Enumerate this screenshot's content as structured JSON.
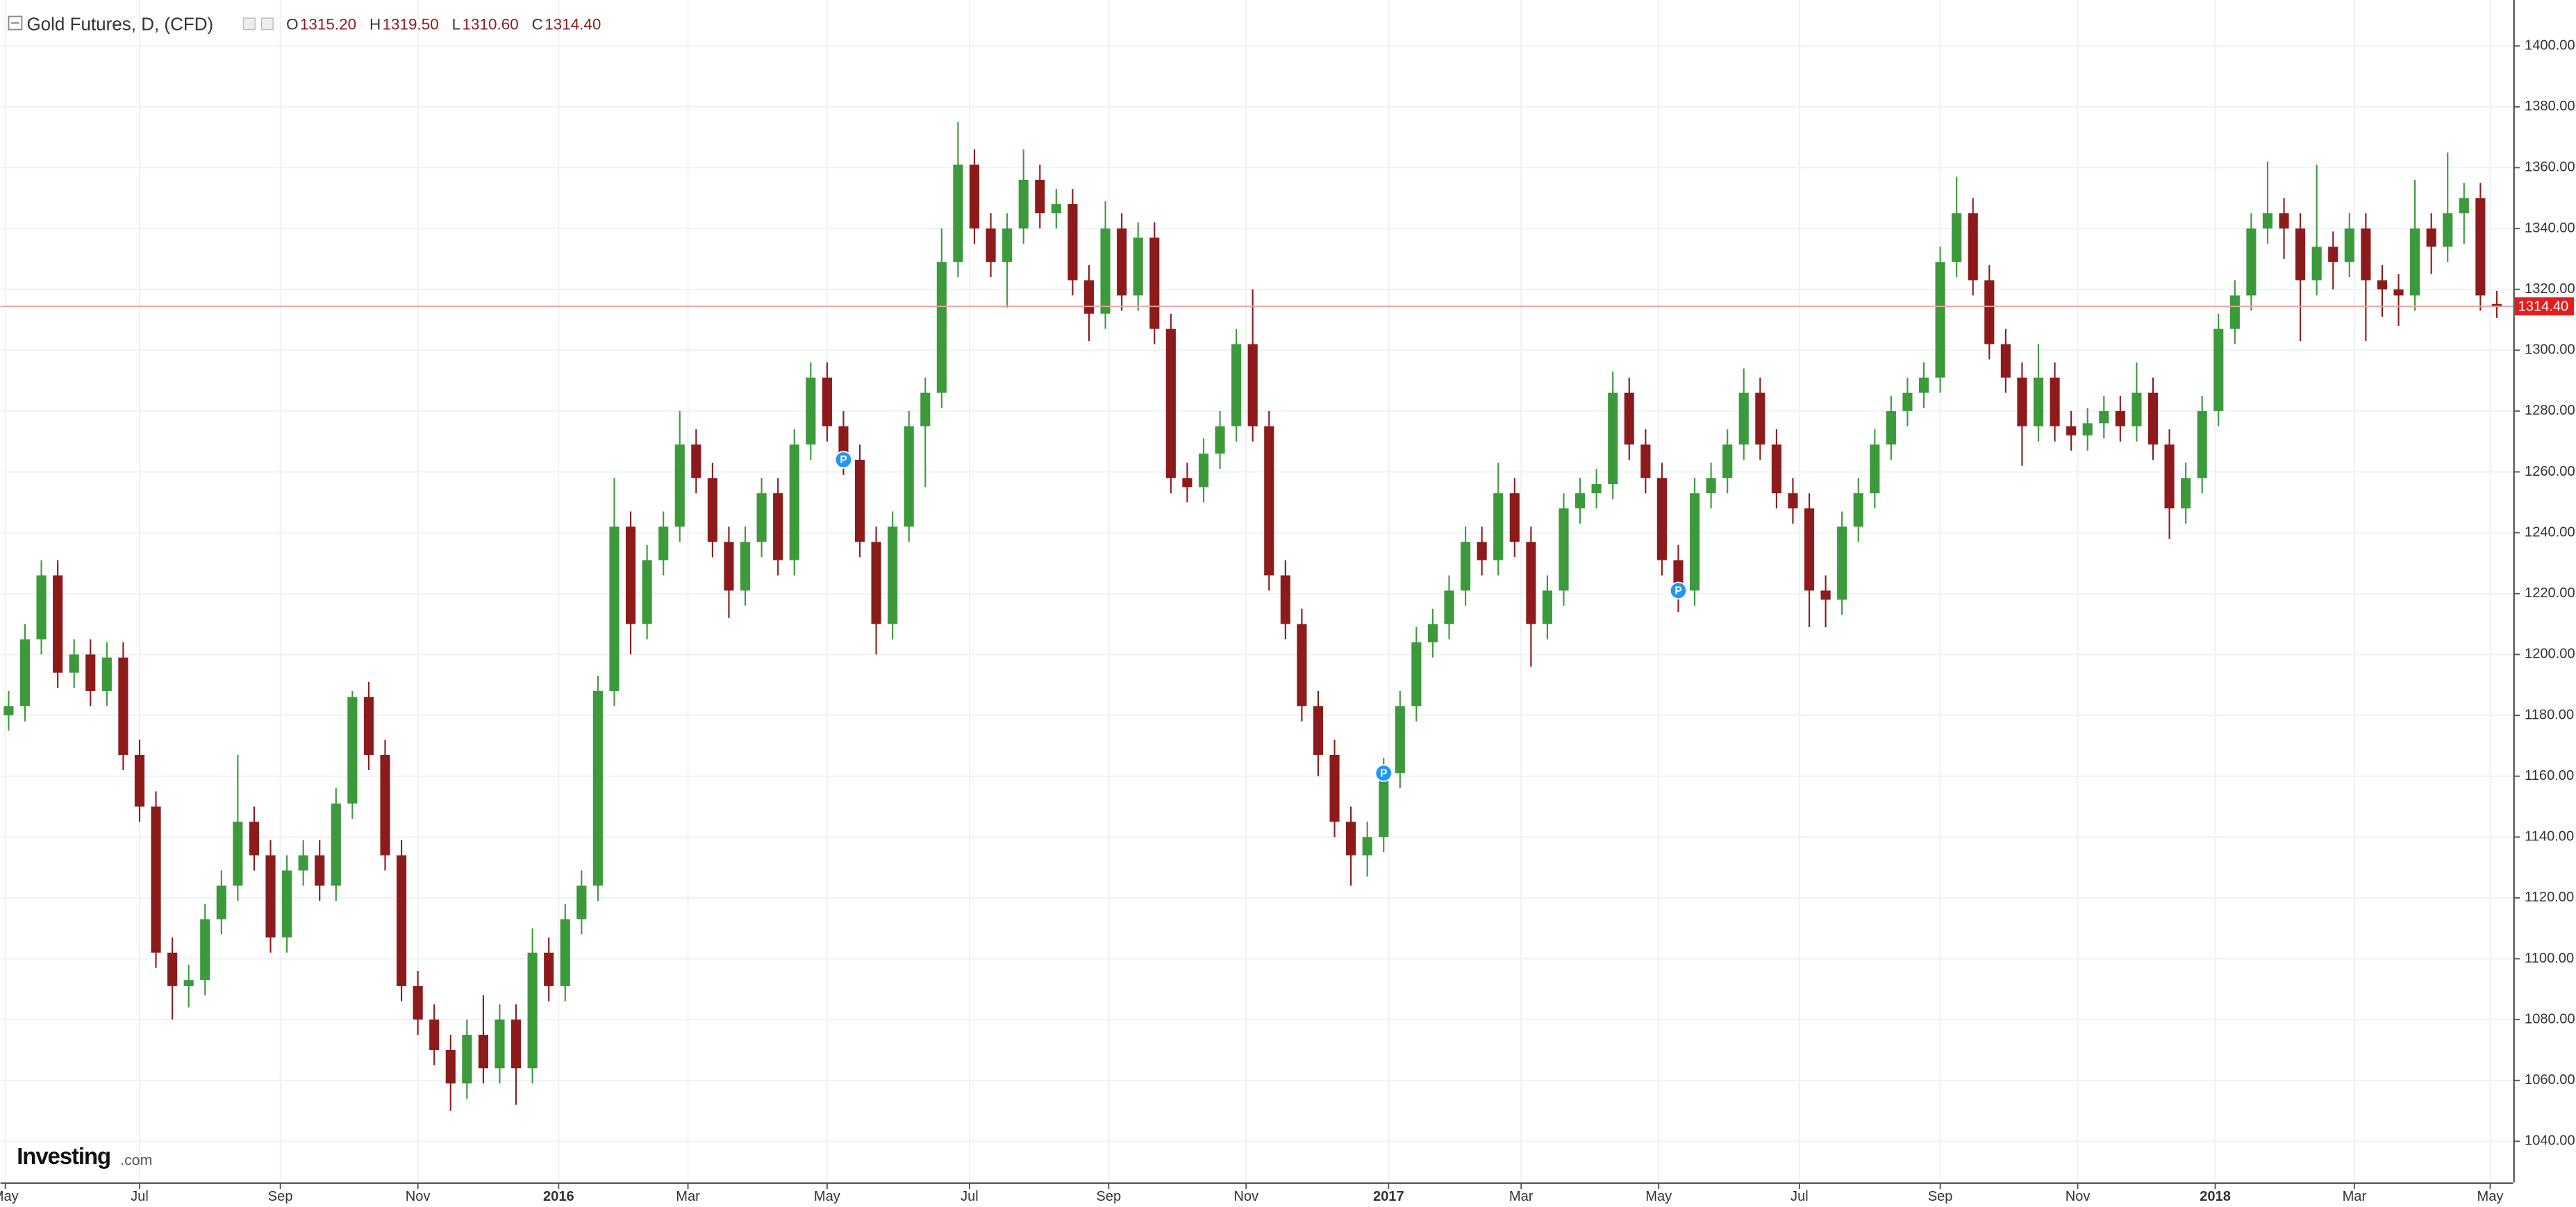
{
  "chart_data": {
    "type": "candlestick",
    "title": "Gold Futures, D, (CFD)",
    "legend": [
      {
        "key": "O",
        "value": "1315.20"
      },
      {
        "key": "H",
        "value": "1319.50"
      },
      {
        "key": "L",
        "value": "1310.60"
      },
      {
        "key": "C",
        "value": "1314.40"
      }
    ],
    "last_price_label": "1314.40",
    "brand": "Investing",
    "brand_suffix": ".com",
    "up_color": "#3c9a3c",
    "down_color": "#8e1b1b",
    "grid": true,
    "ylim": [
      1026.5,
      1415.1
    ],
    "yticks": [
      {
        "value": 1040,
        "label": "1040.00"
      },
      {
        "value": 1060,
        "label": "1060.00"
      },
      {
        "value": 1080,
        "label": "1080.00"
      },
      {
        "value": 1100,
        "label": "1100.00"
      },
      {
        "value": 1120,
        "label": "1120.00"
      },
      {
        "value": 1140,
        "label": "1140.00"
      },
      {
        "value": 1160,
        "label": "1160.00"
      },
      {
        "value": 1180,
        "label": "1180.00"
      },
      {
        "value": 1200,
        "label": "1200.00"
      },
      {
        "value": 1220,
        "label": "1220.00"
      },
      {
        "value": 1240,
        "label": "1240.00"
      },
      {
        "value": 1260,
        "label": "1260.00"
      },
      {
        "value": 1280,
        "label": "1280.00"
      },
      {
        "value": 1300,
        "label": "1300.00"
      },
      {
        "value": 1320,
        "label": "1320.00"
      },
      {
        "value": 1340,
        "label": "1340.00"
      },
      {
        "value": 1360,
        "label": "1360.00"
      },
      {
        "value": 1380,
        "label": "1380.00"
      },
      {
        "value": 1400,
        "label": "1400.00"
      }
    ],
    "xlim": [
      0.5,
      154
    ],
    "xticks": [
      {
        "value": 0.8,
        "label": "May"
      },
      {
        "value": 9,
        "label": "Jul"
      },
      {
        "value": 17.6,
        "label": "Sep"
      },
      {
        "value": 26,
        "label": "Nov"
      },
      {
        "value": 34.6,
        "label": "2016"
      },
      {
        "value": 42.5,
        "label": "Mar"
      },
      {
        "value": 51,
        "label": "May"
      },
      {
        "value": 59.7,
        "label": "Jul"
      },
      {
        "value": 68.2,
        "label": "Sep"
      },
      {
        "value": 76.6,
        "label": "Nov"
      },
      {
        "value": 85.3,
        "label": "2017"
      },
      {
        "value": 93.4,
        "label": "Mar"
      },
      {
        "value": 101.8,
        "label": "May"
      },
      {
        "value": 110.4,
        "label": "Jul"
      },
      {
        "value": 119,
        "label": "Sep"
      },
      {
        "value": 127.4,
        "label": "Nov"
      },
      {
        "value": 135.8,
        "label": "2018"
      },
      {
        "value": 144.3,
        "label": "Mar"
      },
      {
        "value": 152.6,
        "label": "May"
      }
    ],
    "events": [
      {
        "x": 52,
        "label": "P"
      },
      {
        "x": 85,
        "label": "P"
      },
      {
        "x": 103,
        "label": "P"
      }
    ],
    "x": [
      1,
      2,
      3,
      4,
      5,
      6,
      7,
      8,
      9,
      10,
      11,
      12,
      13,
      14,
      15,
      16,
      17,
      18,
      19,
      20,
      21,
      22,
      23,
      24,
      25,
      26,
      27,
      28,
      29,
      30,
      31,
      32,
      33,
      34,
      35,
      36,
      37,
      38,
      39,
      40,
      41,
      42,
      43,
      44,
      45,
      46,
      47,
      48,
      49,
      50,
      51,
      52,
      53,
      54,
      55,
      56,
      57,
      58,
      59,
      60,
      61,
      62,
      63,
      64,
      65,
      66,
      67,
      68,
      69,
      70,
      71,
      72,
      73,
      74,
      75,
      76,
      77,
      78,
      79,
      80,
      81,
      82,
      83,
      84,
      85,
      86,
      87,
      88,
      89,
      90,
      91,
      92,
      93,
      94,
      95,
      96,
      97,
      98,
      99,
      100,
      101,
      102,
      103,
      104,
      105,
      106,
      107,
      108,
      109,
      110,
      111,
      112,
      113,
      114,
      115,
      116,
      117,
      118,
      119,
      120,
      121,
      122,
      123,
      124,
      125,
      126,
      127,
      128,
      129,
      130,
      131,
      132,
      133,
      134,
      135,
      136,
      137,
      138,
      139,
      140,
      141,
      142,
      143,
      144,
      145,
      146,
      147,
      148,
      149,
      150,
      151,
      152,
      153
    ],
    "ohlc": [
      [
        1180,
        1188,
        1175,
        1183
      ],
      [
        1183,
        1210,
        1178,
        1205
      ],
      [
        1205,
        1231,
        1200,
        1226
      ],
      [
        1226,
        1231,
        1189,
        1194
      ],
      [
        1194,
        1205,
        1189,
        1200
      ],
      [
        1200,
        1205,
        1183,
        1188
      ],
      [
        1188,
        1204,
        1183,
        1199
      ],
      [
        1199,
        1204,
        1162,
        1167
      ],
      [
        1167,
        1172,
        1145,
        1150
      ],
      [
        1150,
        1155,
        1097,
        1102
      ],
      [
        1102,
        1107,
        1080,
        1091
      ],
      [
        1091,
        1098,
        1084,
        1093
      ],
      [
        1093,
        1118,
        1088,
        1113
      ],
      [
        1113,
        1129,
        1108,
        1124
      ],
      [
        1124,
        1167,
        1119,
        1145
      ],
      [
        1145,
        1150,
        1129,
        1134
      ],
      [
        1134,
        1139,
        1102,
        1107
      ],
      [
        1107,
        1134,
        1102,
        1129
      ],
      [
        1129,
        1139,
        1124,
        1134
      ],
      [
        1134,
        1139,
        1119,
        1124
      ],
      [
        1124,
        1156,
        1119,
        1151
      ],
      [
        1151,
        1188,
        1146,
        1186
      ],
      [
        1186,
        1191,
        1162,
        1167
      ],
      [
        1167,
        1172,
        1129,
        1134
      ],
      [
        1134,
        1139,
        1086,
        1091
      ],
      [
        1091,
        1096,
        1075,
        1080
      ],
      [
        1080,
        1085,
        1065,
        1070
      ],
      [
        1070,
        1075,
        1050,
        1059
      ],
      [
        1059,
        1080,
        1054,
        1075
      ],
      [
        1075,
        1088,
        1059,
        1064
      ],
      [
        1064,
        1085,
        1059,
        1080
      ],
      [
        1080,
        1085,
        1052,
        1064
      ],
      [
        1064,
        1110,
        1059,
        1102
      ],
      [
        1102,
        1107,
        1086,
        1091
      ],
      [
        1091,
        1118,
        1086,
        1113
      ],
      [
        1113,
        1129,
        1108,
        1124
      ],
      [
        1124,
        1193,
        1119,
        1188
      ],
      [
        1188,
        1258,
        1183,
        1242
      ],
      [
        1242,
        1247,
        1200,
        1210
      ],
      [
        1210,
        1236,
        1205,
        1231
      ],
      [
        1231,
        1247,
        1226,
        1242
      ],
      [
        1242,
        1280,
        1237,
        1269
      ],
      [
        1269,
        1274,
        1253,
        1258
      ],
      [
        1258,
        1263,
        1232,
        1237
      ],
      [
        1237,
        1242,
        1212,
        1221
      ],
      [
        1221,
        1242,
        1216,
        1237
      ],
      [
        1237,
        1258,
        1232,
        1253
      ],
      [
        1253,
        1258,
        1226,
        1231
      ],
      [
        1231,
        1274,
        1226,
        1269
      ],
      [
        1269,
        1296,
        1264,
        1291
      ],
      [
        1291,
        1296,
        1270,
        1275
      ],
      [
        1275,
        1280,
        1259,
        1264
      ],
      [
        1264,
        1269,
        1232,
        1237
      ],
      [
        1237,
        1242,
        1200,
        1210
      ],
      [
        1210,
        1247,
        1205,
        1242
      ],
      [
        1242,
        1280,
        1237,
        1275
      ],
      [
        1275,
        1291,
        1255,
        1286
      ],
      [
        1286,
        1340,
        1281,
        1329
      ],
      [
        1329,
        1375,
        1324,
        1361
      ],
      [
        1361,
        1366,
        1335,
        1340
      ],
      [
        1340,
        1345,
        1324,
        1329
      ],
      [
        1329,
        1345,
        1314,
        1340
      ],
      [
        1340,
        1366,
        1335,
        1356
      ],
      [
        1356,
        1361,
        1340,
        1345
      ],
      [
        1345,
        1353,
        1340,
        1348
      ],
      [
        1348,
        1353,
        1318,
        1323
      ],
      [
        1323,
        1328,
        1303,
        1312
      ],
      [
        1312,
        1349,
        1307,
        1340
      ],
      [
        1340,
        1345,
        1313,
        1318
      ],
      [
        1318,
        1342,
        1313,
        1337
      ],
      [
        1337,
        1342,
        1302,
        1307
      ],
      [
        1307,
        1312,
        1253,
        1258
      ],
      [
        1258,
        1263,
        1250,
        1255
      ],
      [
        1255,
        1271,
        1250,
        1266
      ],
      [
        1266,
        1280,
        1261,
        1275
      ],
      [
        1275,
        1307,
        1270,
        1302
      ],
      [
        1302,
        1320,
        1270,
        1275
      ],
      [
        1275,
        1280,
        1221,
        1226
      ],
      [
        1226,
        1231,
        1205,
        1210
      ],
      [
        1210,
        1215,
        1178,
        1183
      ],
      [
        1183,
        1188,
        1160,
        1167
      ],
      [
        1167,
        1172,
        1140,
        1145
      ],
      [
        1145,
        1150,
        1124,
        1134
      ],
      [
        1134,
        1145,
        1127,
        1140
      ],
      [
        1140,
        1166,
        1135,
        1161
      ],
      [
        1161,
        1188,
        1156,
        1183
      ],
      [
        1183,
        1209,
        1178,
        1204
      ],
      [
        1204,
        1215,
        1199,
        1210
      ],
      [
        1210,
        1226,
        1205,
        1221
      ],
      [
        1221,
        1242,
        1216,
        1237
      ],
      [
        1237,
        1242,
        1226,
        1231
      ],
      [
        1231,
        1263,
        1226,
        1253
      ],
      [
        1253,
        1258,
        1232,
        1237
      ],
      [
        1237,
        1242,
        1196,
        1210
      ],
      [
        1210,
        1226,
        1205,
        1221
      ],
      [
        1221,
        1253,
        1216,
        1248
      ],
      [
        1248,
        1258,
        1243,
        1253
      ],
      [
        1253,
        1261,
        1248,
        1256
      ],
      [
        1256,
        1293,
        1251,
        1286
      ],
      [
        1286,
        1291,
        1264,
        1269
      ],
      [
        1269,
        1274,
        1253,
        1258
      ],
      [
        1258,
        1263,
        1226,
        1231
      ],
      [
        1231,
        1236,
        1214,
        1221
      ],
      [
        1221,
        1258,
        1216,
        1253
      ],
      [
        1253,
        1263,
        1248,
        1258
      ],
      [
        1258,
        1274,
        1253,
        1269
      ],
      [
        1269,
        1294,
        1264,
        1286
      ],
      [
        1286,
        1291,
        1264,
        1269
      ],
      [
        1269,
        1274,
        1248,
        1253
      ],
      [
        1253,
        1258,
        1243,
        1248
      ],
      [
        1248,
        1253,
        1209,
        1221
      ],
      [
        1221,
        1226,
        1209,
        1218
      ],
      [
        1218,
        1247,
        1213,
        1242
      ],
      [
        1242,
        1258,
        1237,
        1253
      ],
      [
        1253,
        1274,
        1248,
        1269
      ],
      [
        1269,
        1285,
        1264,
        1280
      ],
      [
        1280,
        1291,
        1275,
        1286
      ],
      [
        1286,
        1296,
        1281,
        1291
      ],
      [
        1291,
        1334,
        1286,
        1329
      ],
      [
        1329,
        1357,
        1324,
        1345
      ],
      [
        1345,
        1350,
        1318,
        1323
      ],
      [
        1323,
        1328,
        1297,
        1302
      ],
      [
        1302,
        1307,
        1286,
        1291
      ],
      [
        1291,
        1296,
        1262,
        1275
      ],
      [
        1275,
        1302,
        1270,
        1291
      ],
      [
        1291,
        1296,
        1270,
        1275
      ],
      [
        1275,
        1280,
        1267,
        1272
      ],
      [
        1272,
        1281,
        1267,
        1276
      ],
      [
        1276,
        1285,
        1271,
        1280
      ],
      [
        1280,
        1285,
        1270,
        1275
      ],
      [
        1275,
        1296,
        1270,
        1286
      ],
      [
        1286,
        1291,
        1264,
        1269
      ],
      [
        1269,
        1274,
        1238,
        1248
      ],
      [
        1248,
        1263,
        1243,
        1258
      ],
      [
        1258,
        1285,
        1253,
        1280
      ],
      [
        1280,
        1312,
        1275,
        1307
      ],
      [
        1307,
        1323,
        1302,
        1318
      ],
      [
        1318,
        1345,
        1313,
        1340
      ],
      [
        1340,
        1362,
        1335,
        1345
      ],
      [
        1345,
        1350,
        1330,
        1340
      ],
      [
        1340,
        1345,
        1303,
        1323
      ],
      [
        1323,
        1361,
        1318,
        1334
      ],
      [
        1334,
        1339,
        1320,
        1329
      ],
      [
        1329,
        1345,
        1324,
        1340
      ],
      [
        1340,
        1345,
        1303,
        1323
      ],
      [
        1323,
        1328,
        1311,
        1320
      ],
      [
        1320,
        1325,
        1308,
        1318
      ],
      [
        1318,
        1356,
        1313,
        1340
      ],
      [
        1340,
        1345,
        1325,
        1334
      ],
      [
        1334,
        1365,
        1329,
        1345
      ],
      [
        1345,
        1355,
        1335,
        1350
      ],
      [
        1350,
        1355,
        1313,
        1318
      ],
      [
        1315.2,
        1319.5,
        1310.6,
        1314.4
      ]
    ]
  }
}
